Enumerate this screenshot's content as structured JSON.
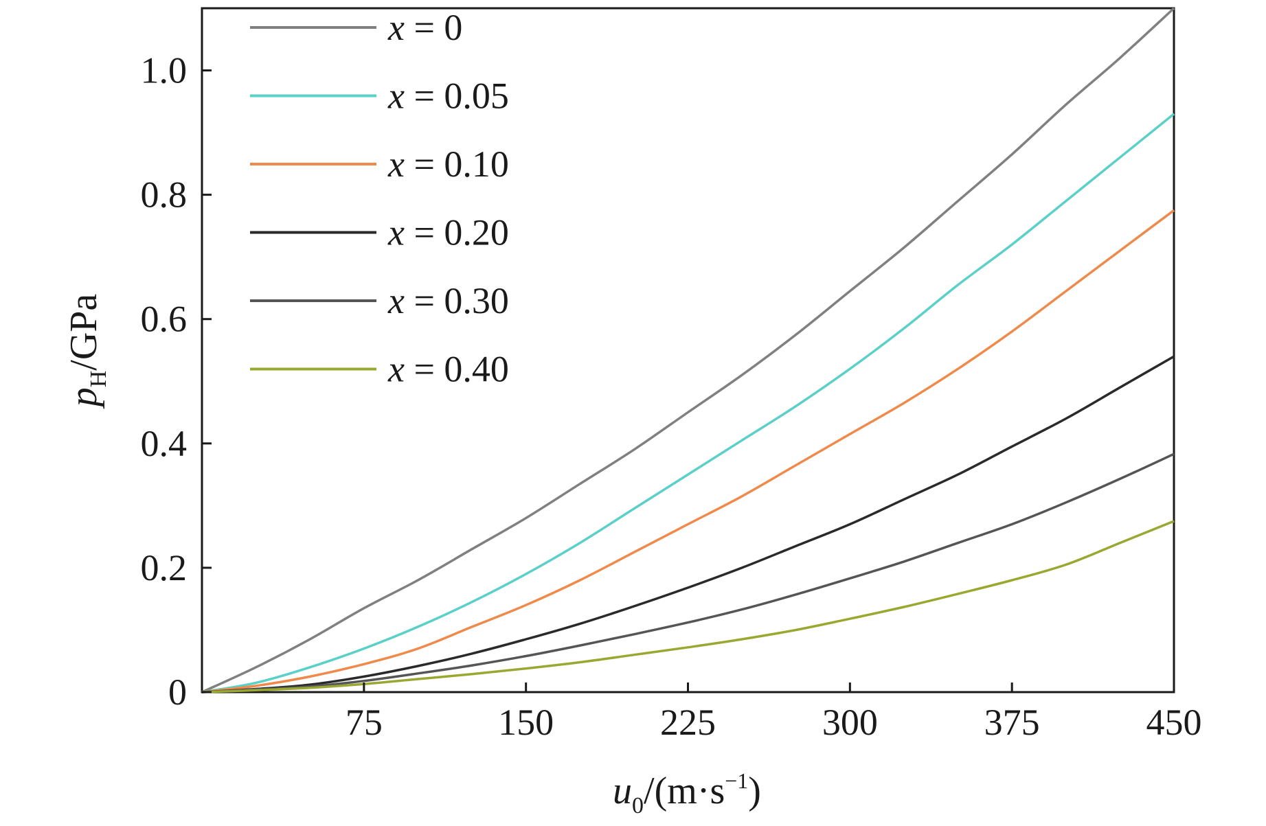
{
  "chart_data": {
    "type": "line",
    "xlabel": {
      "var": "u",
      "sub": "0",
      "unit_pre": "/(m·s",
      "sup": "−1",
      "unit_post": ")"
    },
    "ylabel": {
      "var": "p",
      "sub": "H",
      "unit": "/GPa"
    },
    "xlim": [
      0,
      450
    ],
    "ylim": [
      0,
      1.1
    ],
    "x_ticks": [
      75,
      150,
      225,
      300,
      375,
      450
    ],
    "x_tick_labels": [
      "75",
      "150",
      "225",
      "300",
      "375",
      "450"
    ],
    "y_ticks": [
      0,
      0.2,
      0.4,
      0.6,
      0.8,
      1.0
    ],
    "y_tick_labels": [
      "0",
      "0.2",
      "0.4",
      "0.6",
      "0.8",
      "1.0"
    ],
    "grid": false,
    "legend_position": "top-left",
    "x": [
      0,
      25,
      50,
      75,
      100,
      125,
      150,
      175,
      200,
      225,
      250,
      275,
      300,
      325,
      350,
      375,
      400,
      425,
      450
    ],
    "series": [
      {
        "name": "x = 0",
        "color": "#808080",
        "values": [
          0,
          0.04,
          0.085,
          0.135,
          0.18,
          0.23,
          0.28,
          0.335,
          0.39,
          0.45,
          0.51,
          0.575,
          0.645,
          0.715,
          0.79,
          0.865,
          0.945,
          1.02,
          1.1
        ]
      },
      {
        "name": "x = 0.05",
        "color": "#5ad0c8",
        "values": [
          0,
          0.015,
          0.04,
          0.07,
          0.105,
          0.145,
          0.19,
          0.24,
          0.295,
          0.35,
          0.405,
          0.46,
          0.52,
          0.585,
          0.655,
          0.72,
          0.79,
          0.86,
          0.93
        ]
      },
      {
        "name": "x = 0.10",
        "color": "#f08a4b",
        "values": [
          0,
          0.01,
          0.025,
          0.045,
          0.07,
          0.105,
          0.14,
          0.18,
          0.225,
          0.27,
          0.315,
          0.365,
          0.415,
          0.465,
          0.52,
          0.58,
          0.645,
          0.71,
          0.775
        ]
      },
      {
        "name": "x = 0.20",
        "color": "#2a2a2a",
        "values": [
          0,
          0.005,
          0.012,
          0.025,
          0.042,
          0.062,
          0.085,
          0.11,
          0.138,
          0.168,
          0.2,
          0.235,
          0.27,
          0.31,
          0.35,
          0.395,
          0.44,
          0.49,
          0.54
        ]
      },
      {
        "name": "x = 0.30",
        "color": "#555555",
        "values": [
          0,
          0.004,
          0.009,
          0.018,
          0.03,
          0.043,
          0.058,
          0.075,
          0.093,
          0.112,
          0.133,
          0.157,
          0.183,
          0.21,
          0.24,
          0.27,
          0.305,
          0.343,
          0.383
        ]
      },
      {
        "name": "x = 0.40",
        "color": "#9aa832",
        "values": [
          0,
          0.003,
          0.007,
          0.013,
          0.021,
          0.029,
          0.038,
          0.048,
          0.06,
          0.072,
          0.085,
          0.1,
          0.118,
          0.137,
          0.158,
          0.18,
          0.205,
          0.24,
          0.275
        ]
      }
    ]
  }
}
